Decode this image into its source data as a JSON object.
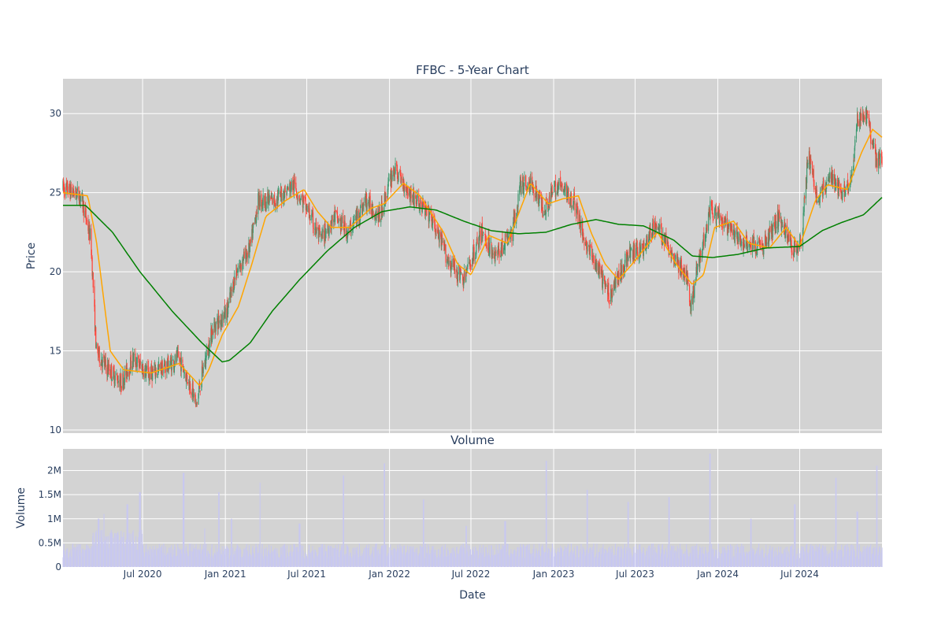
{
  "chart_data": [
    {
      "type": "candlestick",
      "title": "FFBC - 5-Year Chart",
      "xlabel": "",
      "ylabel": "Price",
      "x_range": [
        "2020-01-06",
        "2024-12-31"
      ],
      "ylim": [
        9.8,
        32.2
      ],
      "y_ticks": [
        10,
        15,
        20,
        25,
        30
      ],
      "grid": true,
      "legend": "none",
      "colors": {
        "up": "#3d9970",
        "down": "#ff4136",
        "ma_short": "#ffa500",
        "ma_long": "#008000",
        "background": "#d3d3d3"
      },
      "price_keypoints": [
        [
          "2020-01-06",
          25.3
        ],
        [
          "2020-02-15",
          24.8
        ],
        [
          "2020-03-08",
          22.0
        ],
        [
          "2020-03-20",
          15.0
        ],
        [
          "2020-04-10",
          14.0
        ],
        [
          "2020-05-15",
          13.0
        ],
        [
          "2020-06-10",
          14.5
        ],
        [
          "2020-07-15",
          13.5
        ],
        [
          "2020-08-20",
          14.0
        ],
        [
          "2020-09-20",
          14.5
        ],
        [
          "2020-10-20",
          12.5
        ],
        [
          "2020-10-28",
          11.5
        ],
        [
          "2020-11-10",
          13.5
        ],
        [
          "2020-12-05",
          16.5
        ],
        [
          "2021-01-05",
          17.5
        ],
        [
          "2021-01-25",
          20.0
        ],
        [
          "2021-02-25",
          21.5
        ],
        [
          "2021-03-15",
          24.5
        ],
        [
          "2021-04-20",
          24.5
        ],
        [
          "2021-06-01",
          25.5
        ],
        [
          "2021-07-01",
          24.0
        ],
        [
          "2021-08-01",
          22.0
        ],
        [
          "2021-09-01",
          23.5
        ],
        [
          "2021-10-01",
          22.5
        ],
        [
          "2021-11-10",
          24.5
        ],
        [
          "2021-12-10",
          23.5
        ],
        [
          "2022-01-10",
          26.5
        ],
        [
          "2022-02-15",
          25.0
        ],
        [
          "2022-04-01",
          23.5
        ],
        [
          "2022-05-15",
          20.5
        ],
        [
          "2022-06-15",
          19.5
        ],
        [
          "2022-07-25",
          22.5
        ],
        [
          "2022-08-25",
          21.0
        ],
        [
          "2022-10-01",
          22.5
        ],
        [
          "2022-10-20",
          25.5
        ],
        [
          "2022-11-15",
          25.5
        ],
        [
          "2022-12-10",
          24.0
        ],
        [
          "2023-01-10",
          25.5
        ],
        [
          "2023-02-15",
          24.5
        ],
        [
          "2023-03-10",
          22.0
        ],
        [
          "2023-05-05",
          18.5
        ],
        [
          "2023-06-15",
          21.0
        ],
        [
          "2023-07-20",
          21.5
        ],
        [
          "2023-08-15",
          23.0
        ],
        [
          "2023-09-15",
          21.5
        ],
        [
          "2023-10-25",
          19.5
        ],
        [
          "2023-10-31",
          17.5
        ],
        [
          "2023-11-15",
          20.0
        ],
        [
          "2023-12-15",
          24.0
        ],
        [
          "2024-01-15",
          23.0
        ],
        [
          "2024-02-15",
          22.0
        ],
        [
          "2024-04-10",
          21.5
        ],
        [
          "2024-05-15",
          23.5
        ],
        [
          "2024-06-15",
          21.5
        ],
        [
          "2024-07-05",
          22.0
        ],
        [
          "2024-07-20",
          27.5
        ],
        [
          "2024-08-10",
          24.5
        ],
        [
          "2024-09-05",
          26.0
        ],
        [
          "2024-10-01",
          25.0
        ],
        [
          "2024-10-25",
          26.0
        ],
        [
          "2024-11-06",
          29.5
        ],
        [
          "2024-11-25",
          30.0
        ],
        [
          "2024-12-18",
          27.0
        ],
        [
          "2024-12-31",
          27.0
        ]
      ],
      "ma_short_keypoints": [
        [
          "2020-01-06",
          25.0
        ],
        [
          "2020-03-01",
          24.8
        ],
        [
          "2020-03-20",
          22.0
        ],
        [
          "2020-04-20",
          15.0
        ],
        [
          "2020-05-20",
          13.8
        ],
        [
          "2020-07-20",
          13.6
        ],
        [
          "2020-09-20",
          14.2
        ],
        [
          "2020-11-05",
          12.8
        ],
        [
          "2020-11-25",
          13.8
        ],
        [
          "2020-12-25",
          16.0
        ],
        [
          "2021-01-30",
          17.8
        ],
        [
          "2021-03-01",
          20.5
        ],
        [
          "2021-04-01",
          23.5
        ],
        [
          "2021-05-15",
          24.5
        ],
        [
          "2021-06-25",
          25.2
        ],
        [
          "2021-07-25",
          23.8
        ],
        [
          "2021-08-25",
          22.8
        ],
        [
          "2021-10-05",
          22.8
        ],
        [
          "2021-11-20",
          24.0
        ],
        [
          "2021-12-20",
          24.3
        ],
        [
          "2022-02-01",
          25.6
        ],
        [
          "2022-03-10",
          24.8
        ],
        [
          "2022-05-01",
          22.5
        ],
        [
          "2022-06-01",
          20.5
        ],
        [
          "2022-07-01",
          19.8
        ],
        [
          "2022-08-10",
          22.3
        ],
        [
          "2022-09-20",
          21.8
        ],
        [
          "2022-11-10",
          25.6
        ],
        [
          "2022-12-20",
          24.3
        ],
        [
          "2023-01-20",
          24.6
        ],
        [
          "2023-02-25",
          24.8
        ],
        [
          "2023-03-25",
          22.5
        ],
        [
          "2023-04-25",
          20.5
        ],
        [
          "2023-05-25",
          19.5
        ],
        [
          "2023-06-25",
          20.5
        ],
        [
          "2023-08-20",
          22.5
        ],
        [
          "2023-09-30",
          20.5
        ],
        [
          "2023-11-05",
          19.2
        ],
        [
          "2023-11-30",
          19.8
        ],
        [
          "2023-12-25",
          22.8
        ],
        [
          "2024-02-05",
          23.2
        ],
        [
          "2024-03-10",
          21.8
        ],
        [
          "2024-04-25",
          21.5
        ],
        [
          "2024-06-01",
          22.8
        ],
        [
          "2024-07-01",
          21.6
        ],
        [
          "2024-08-05",
          24.5
        ],
        [
          "2024-09-01",
          25.5
        ],
        [
          "2024-10-15",
          25.2
        ],
        [
          "2024-11-15",
          27.5
        ],
        [
          "2024-12-10",
          29.0
        ],
        [
          "2024-12-31",
          28.5
        ]
      ],
      "ma_long_keypoints": [
        [
          "2020-01-06",
          24.2
        ],
        [
          "2020-02-25",
          24.2
        ],
        [
          "2020-04-25",
          22.5
        ],
        [
          "2020-06-25",
          20.0
        ],
        [
          "2020-09-05",
          17.5
        ],
        [
          "2020-11-10",
          15.5
        ],
        [
          "2020-12-25",
          14.3
        ],
        [
          "2021-01-10",
          14.4
        ],
        [
          "2021-02-25",
          15.5
        ],
        [
          "2021-04-15",
          17.5
        ],
        [
          "2021-06-15",
          19.5
        ],
        [
          "2021-08-15",
          21.3
        ],
        [
          "2021-10-15",
          22.8
        ],
        [
          "2021-12-15",
          23.8
        ],
        [
          "2022-02-15",
          24.1
        ],
        [
          "2022-04-15",
          23.9
        ],
        [
          "2022-06-15",
          23.2
        ],
        [
          "2022-08-15",
          22.6
        ],
        [
          "2022-10-15",
          22.4
        ],
        [
          "2022-12-15",
          22.5
        ],
        [
          "2023-02-10",
          23.0
        ],
        [
          "2023-04-05",
          23.3
        ],
        [
          "2023-05-25",
          23.0
        ],
        [
          "2023-07-20",
          22.9
        ],
        [
          "2023-09-25",
          22.0
        ],
        [
          "2023-11-05",
          21.0
        ],
        [
          "2023-12-20",
          20.9
        ],
        [
          "2024-02-15",
          21.1
        ],
        [
          "2024-04-15",
          21.5
        ],
        [
          "2024-07-01",
          21.6
        ],
        [
          "2024-08-20",
          22.6
        ],
        [
          "2024-10-01",
          23.1
        ],
        [
          "2024-11-20",
          23.6
        ],
        [
          "2024-12-31",
          24.7
        ]
      ]
    },
    {
      "type": "bar",
      "title": "Volume",
      "xlabel": "Date",
      "ylabel": "Volume",
      "x_range": [
        "2020-01-06",
        "2024-12-31"
      ],
      "ylim": [
        0,
        2450000
      ],
      "y_ticks": [
        0,
        500000,
        1000000,
        1500000,
        2000000
      ],
      "y_tick_labels": [
        "0",
        "0.5M",
        "1M",
        "1.5M",
        "2M"
      ],
      "x_ticks": [
        "2020-07-01",
        "2021-01-01",
        "2021-07-01",
        "2022-01-01",
        "2022-07-01",
        "2023-01-01",
        "2023-07-01",
        "2024-01-01",
        "2024-07-01"
      ],
      "x_tick_labels": [
        "Jul 2020",
        "Jan 2021",
        "Jul 2021",
        "Jan 2022",
        "Jul 2022",
        "Jan 2023",
        "Jul 2023",
        "Jan 2024",
        "Jul 2024"
      ],
      "grid": true,
      "color": "#c8c8f0",
      "typical_volume": 350000,
      "spikes": [
        [
          "2020-03-25",
          1000000
        ],
        [
          "2020-04-05",
          1100000
        ],
        [
          "2020-05-01",
          700000
        ],
        [
          "2020-05-28",
          1300000
        ],
        [
          "2020-06-25",
          1550000
        ],
        [
          "2020-09-30",
          1950000
        ],
        [
          "2020-11-15",
          800000
        ],
        [
          "2020-12-18",
          1550000
        ],
        [
          "2021-01-15",
          1000000
        ],
        [
          "2021-03-20",
          1750000
        ],
        [
          "2021-06-15",
          900000
        ],
        [
          "2021-09-20",
          1900000
        ],
        [
          "2021-12-20",
          2150000
        ],
        [
          "2022-03-18",
          1400000
        ],
        [
          "2022-06-20",
          850000
        ],
        [
          "2022-09-15",
          950000
        ],
        [
          "2022-12-16",
          2200000
        ],
        [
          "2023-03-17",
          1600000
        ],
        [
          "2023-06-16",
          1350000
        ],
        [
          "2023-09-15",
          1450000
        ],
        [
          "2023-12-15",
          2350000
        ],
        [
          "2024-03-15",
          1000000
        ],
        [
          "2024-06-20",
          1300000
        ],
        [
          "2024-09-20",
          1850000
        ],
        [
          "2024-11-06",
          1150000
        ],
        [
          "2024-12-20",
          2100000
        ]
      ]
    }
  ]
}
